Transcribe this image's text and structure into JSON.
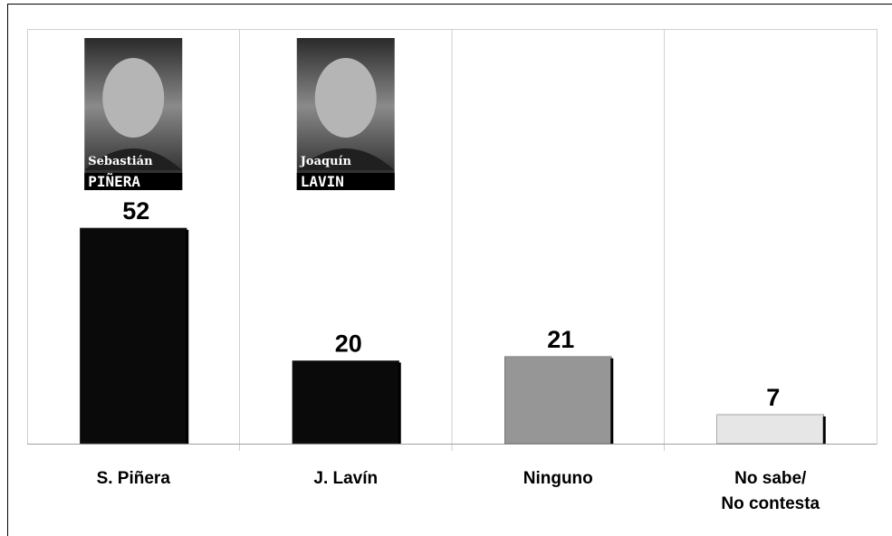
{
  "chart_data": {
    "type": "bar",
    "categories": [
      "S. Piñera",
      "J. Lavín",
      "Ninguno",
      "No sabe/\nNo contesta"
    ],
    "values": [
      52,
      20,
      21,
      7
    ],
    "colors": [
      "#0a0a0a",
      "#0a0a0a",
      "#969696",
      "#e6e6e6"
    ],
    "ylim": [
      0,
      100
    ],
    "grid": true,
    "photos": [
      {
        "first": "Sebastián",
        "last": "PIÑERA"
      },
      {
        "first": "Joaquín",
        "last": "LAVIN"
      }
    ]
  }
}
